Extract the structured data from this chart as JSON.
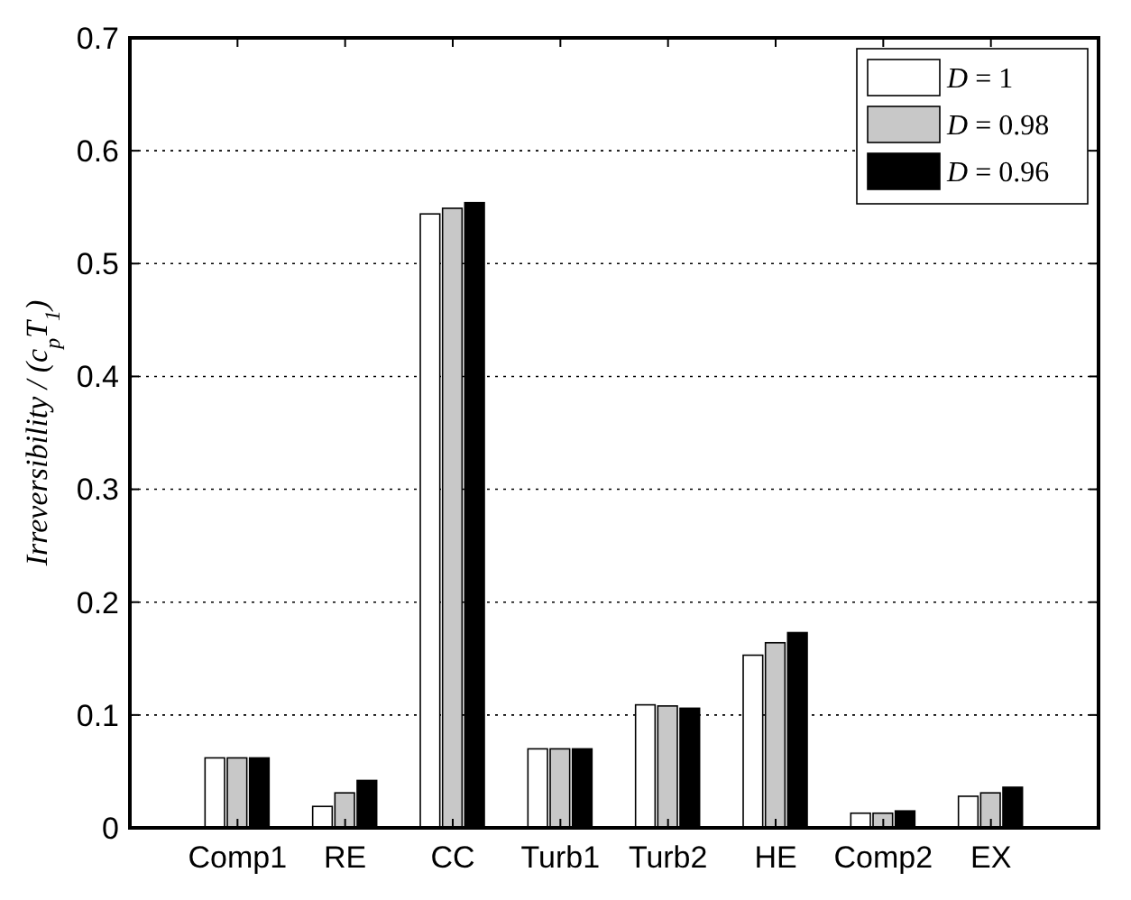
{
  "chart_data": {
    "type": "bar",
    "ylabel": "Irreversibility / (c$_{p}$T$_{1}$)",
    "categories": [
      "Comp1",
      "RE",
      "CC",
      "Turb1",
      "Turb2",
      "HE",
      "Comp2",
      "EX"
    ],
    "series": [
      {
        "name": "D = 1",
        "color": "#ffffff",
        "values": [
          0.062,
          0.019,
          0.544,
          0.07,
          0.109,
          0.153,
          0.013,
          0.028
        ]
      },
      {
        "name": "D = 0.98",
        "color": "#c8c8c8",
        "values": [
          0.062,
          0.031,
          0.549,
          0.07,
          0.108,
          0.164,
          0.013,
          0.031
        ]
      },
      {
        "name": "D = 0.96",
        "color": "#000000",
        "values": [
          0.062,
          0.042,
          0.554,
          0.07,
          0.106,
          0.173,
          0.015,
          0.036
        ]
      }
    ],
    "ylim": [
      0,
      0.7
    ],
    "yticks": [
      0,
      0.1,
      0.2,
      0.3,
      0.4,
      0.5,
      0.6,
      0.7
    ],
    "grid": "y",
    "legend": "top right"
  }
}
